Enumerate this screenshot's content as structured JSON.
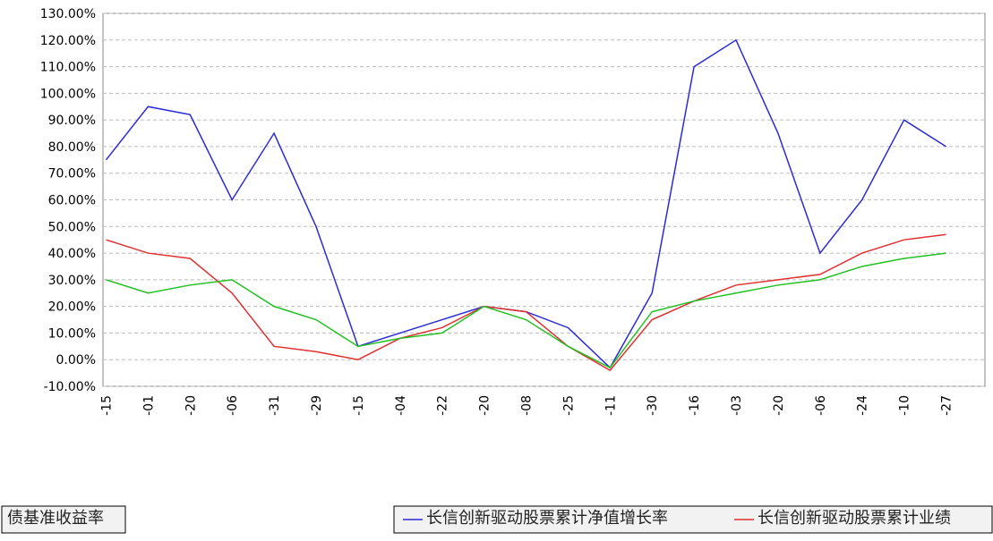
{
  "chart_data": {
    "type": "line",
    "categories": [
      "-15",
      "-01",
      "-20",
      "-06",
      "-31",
      "-29",
      "-15",
      "-04",
      "-22",
      "-20",
      "-08",
      "-25",
      "-11",
      "-30",
      "-16",
      "-03",
      "-20",
      "-06",
      "-24",
      "-10",
      "-27"
    ],
    "series": [
      {
        "name": "长信创新驱动股票累计净值增长率",
        "color": "#2b2bd6",
        "values": [
          75,
          95,
          92,
          60,
          85,
          50,
          5,
          10,
          15,
          20,
          18,
          12,
          -3,
          25,
          110,
          120,
          85,
          40,
          60,
          90,
          80
        ]
      },
      {
        "name": "长信创新驱动股票累计业绩",
        "color": "#e03030",
        "values": [
          45,
          40,
          38,
          25,
          5,
          3,
          0,
          8,
          12,
          20,
          18,
          5,
          -4,
          15,
          22,
          28,
          30,
          32,
          40,
          45,
          47
        ]
      },
      {
        "name": "债基准收益率",
        "color": "#22c022",
        "values": [
          30,
          25,
          28,
          30,
          20,
          15,
          5,
          8,
          10,
          20,
          15,
          5,
          -3,
          18,
          22,
          25,
          28,
          30,
          35,
          38,
          40
        ]
      }
    ],
    "ylim": [
      -10,
      130
    ],
    "yticks": [
      {
        "value": -10,
        "label": "-10.00%"
      },
      {
        "value": 0,
        "label": "0.00%"
      },
      {
        "value": 10,
        "label": "10.00%"
      },
      {
        "value": 20,
        "label": "20.00%"
      },
      {
        "value": 30,
        "label": "30.00%"
      },
      {
        "value": 40,
        "label": "40.00%"
      },
      {
        "value": 50,
        "label": "50.00%"
      },
      {
        "value": 60,
        "label": "60.00%"
      },
      {
        "value": 70,
        "label": "70.00%"
      },
      {
        "value": 80,
        "label": "80.00%"
      },
      {
        "value": 90,
        "label": "90.00%"
      },
      {
        "value": 100,
        "label": "100.00%"
      },
      {
        "value": 110,
        "label": "110.00%"
      },
      {
        "value": 120,
        "label": "120.00%"
      },
      {
        "value": 130,
        "label": "130.00%"
      }
    ],
    "grid": true
  }
}
